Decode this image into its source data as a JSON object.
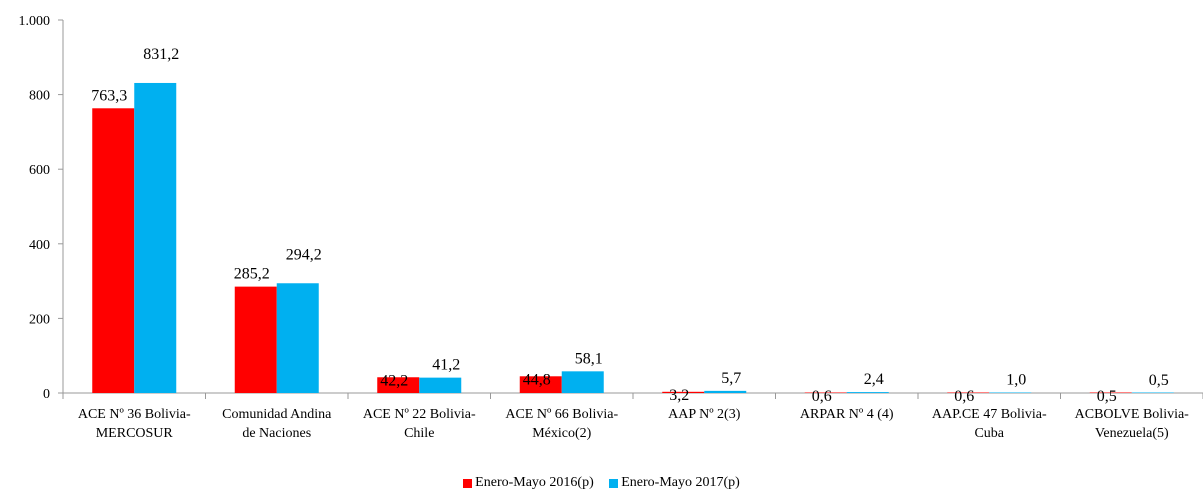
{
  "chart_data": {
    "type": "bar",
    "categories": [
      [
        "ACE Nº 36 Bolivia-",
        "MERCOSUR"
      ],
      [
        "Comunidad Andina",
        "de Naciones"
      ],
      [
        "ACE Nº 22  Bolivia-",
        "Chile"
      ],
      [
        "ACE Nº 66  Bolivia-",
        "México(2)"
      ],
      [
        "AAP Nº 2(3)"
      ],
      [
        "ARPAR Nº 4 (4)"
      ],
      [
        "AAP.CE 47 Bolivia-",
        "Cuba"
      ],
      [
        "ACBOLVE Bolivia-",
        "Venezuela(5)"
      ]
    ],
    "series": [
      {
        "name": "Enero-Mayo 2016(p)",
        "color": "#ff0000",
        "values": [
          763.3,
          285.2,
          42.2,
          44.8,
          3.2,
          0.6,
          0.6,
          0.5
        ],
        "labels": [
          "763,3",
          "285,2",
          "42,2",
          "44,8",
          "3,2",
          "0,6",
          "0,6",
          "0,5"
        ]
      },
      {
        "name": "Enero-Mayo 2017(p)",
        "color": "#00b0f0",
        "values": [
          831.2,
          294.2,
          41.2,
          58.1,
          5.7,
          2.4,
          1.0,
          0.5
        ],
        "labels": [
          "831,2",
          "294,2",
          "41,2",
          "58,1",
          "5,7",
          "2,4",
          "1,0",
          "0,5"
        ]
      }
    ],
    "ylim": [
      0,
      1000
    ],
    "yticks": [
      0,
      200,
      400,
      600,
      800,
      1000
    ],
    "ytick_labels": [
      "0",
      "200",
      "400",
      "600",
      "800",
      "1.000"
    ],
    "grid": false,
    "legend_position": "bottom"
  }
}
